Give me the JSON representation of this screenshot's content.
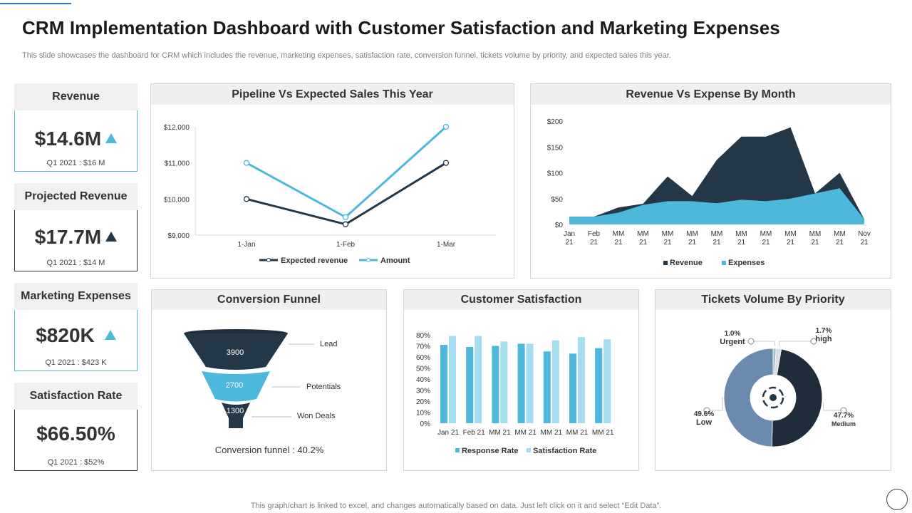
{
  "title": "CRM Implementation Dashboard with Customer Satisfaction and Marketing Expenses",
  "subtitle": "This slide showcases the dashboard for CRM which includes the revenue, marketing expenses, satisfaction rate, conversion funnel, tickets volume by priority, and expected sales this year.",
  "colors": {
    "navy": "#243746",
    "sky": "#4db8db",
    "light_sky": "#a6dcef",
    "steel": "#6b8aad",
    "border_blue": "#2e75b6"
  },
  "kpis": [
    {
      "label": "Revenue",
      "value": "$14.6M",
      "sub": "Q1 2021 : $16 M",
      "trend": "up",
      "arrow_color": "#4db8db",
      "border": "#4db8db"
    },
    {
      "label": "Projected Revenue",
      "value": "$17.7M",
      "sub": "Q1 2021 : $14 M",
      "trend": "up",
      "arrow_color": "#243746",
      "border": "#243746"
    },
    {
      "label": "Marketing Expenses",
      "value": "$820K",
      "sub": "Q1 2021 : $423 K",
      "trend": "up",
      "arrow_color": "#4db8db",
      "border": "#4db8db"
    },
    {
      "label": "Satisfaction Rate",
      "value": "$66.50%",
      "sub": "Q1 2021 : $52%",
      "trend": "",
      "arrow_color": "",
      "border": "#243746"
    }
  ],
  "pipeline": {
    "title": "Pipeline Vs Expected Sales This Year"
  },
  "revexp": {
    "title": "Revenue Vs Expense By Month"
  },
  "funnel": {
    "title": "Conversion Funnel",
    "stages": [
      {
        "value": "3900",
        "label": "Lead"
      },
      {
        "value": "2700",
        "label": "Potentials"
      },
      {
        "value": "1300",
        "label": "Won Deals"
      }
    ],
    "conversion_text": "Conversion  funnel  : 40.2%"
  },
  "satisfaction": {
    "title": "Customer Satisfaction"
  },
  "tickets": {
    "title": "Tickets Volume By Priority",
    "slices": [
      {
        "name": "Urgent",
        "pct": "1.0%",
        "value": 1.0,
        "color": "#a9b7c6"
      },
      {
        "name": "high",
        "pct": "1.7%",
        "value": 1.7,
        "color": "#d9dde2"
      },
      {
        "name": "Medium",
        "pct": "47.7%",
        "value": 47.7,
        "color": "#1f2c3a"
      },
      {
        "name": "Low",
        "pct": "49.6%",
        "value": 49.6,
        "color": "#6b8aad"
      }
    ]
  },
  "footer": "This graph/chart is linked to excel,  and changes automatically based on data. Just left click on it and select “Edit Data”.",
  "chart_data": [
    {
      "type": "line",
      "title": "Pipeline Vs Expected Sales This Year",
      "categories": [
        "1-Jan",
        "1-Feb",
        "1-Mar"
      ],
      "series": [
        {
          "name": "Expected revenue",
          "values": [
            10000,
            9300,
            11000
          ],
          "color": "#243746"
        },
        {
          "name": "Amount",
          "values": [
            11000,
            9500,
            12000
          ],
          "color": "#4db8db"
        }
      ],
      "ylim": [
        9000,
        12000
      ],
      "yticks": [
        "$9,000",
        "$10,000",
        "$11,000",
        "$12,000"
      ],
      "ytick_values": [
        9000,
        10000,
        11000,
        12000
      ],
      "legend": "bottom"
    },
    {
      "type": "area",
      "title": "Revenue Vs Expense By Month",
      "categories": [
        "Jan 21",
        "Feb 21",
        "MM 21",
        "MM 21",
        "MM 21",
        "MM 21",
        "MM 21",
        "MM 21",
        "MM 21",
        "MM 21",
        "MM 21",
        "MM 21",
        "Nov 21"
      ],
      "series": [
        {
          "name": "Revenue",
          "values": [
            15,
            15,
            33,
            40,
            93,
            55,
            125,
            170,
            170,
            188,
            60,
            100,
            10
          ],
          "color": "#243746"
        },
        {
          "name": "Expenses",
          "values": [
            15,
            15,
            23,
            38,
            45,
            45,
            41,
            48,
            45,
            50,
            60,
            70,
            10
          ],
          "color": "#4db8db"
        }
      ],
      "ylim": [
        0,
        200
      ],
      "yticks": [
        "$0",
        "$50",
        "$100",
        "$150",
        "$200"
      ],
      "ytick_values": [
        0,
        50,
        100,
        150,
        200
      ],
      "legend": "bottom"
    },
    {
      "type": "bar",
      "title": "Customer Satisfaction",
      "categories": [
        "Jan 21",
        "Feb 21",
        "MM 21",
        "MM 21",
        "MM 21",
        "MM 21",
        "MM 21"
      ],
      "series": [
        {
          "name": "Response Rate",
          "values": [
            71,
            69,
            70,
            72,
            65,
            63,
            68
          ],
          "color": "#4db8db"
        },
        {
          "name": "Satisfaction Rate",
          "values": [
            79,
            79,
            74,
            72,
            75,
            78,
            76
          ],
          "color": "#a6dcef"
        }
      ],
      "ylim": [
        0,
        80
      ],
      "yticks": [
        "0%",
        "10%",
        "20%",
        "30%",
        "40%",
        "50%",
        "60%",
        "70%",
        "80%"
      ],
      "ytick_values": [
        0,
        10,
        20,
        30,
        40,
        50,
        60,
        70,
        80
      ],
      "legend": "bottom"
    },
    {
      "type": "pie",
      "title": "Tickets Volume By Priority",
      "labels": [
        "Urgent",
        "high",
        "Medium",
        "Low"
      ],
      "values": [
        1.0,
        1.7,
        47.7,
        49.6
      ],
      "value_labels": [
        "1.0%",
        "1.7%",
        "47.7%",
        "49.6%"
      ]
    }
  ]
}
